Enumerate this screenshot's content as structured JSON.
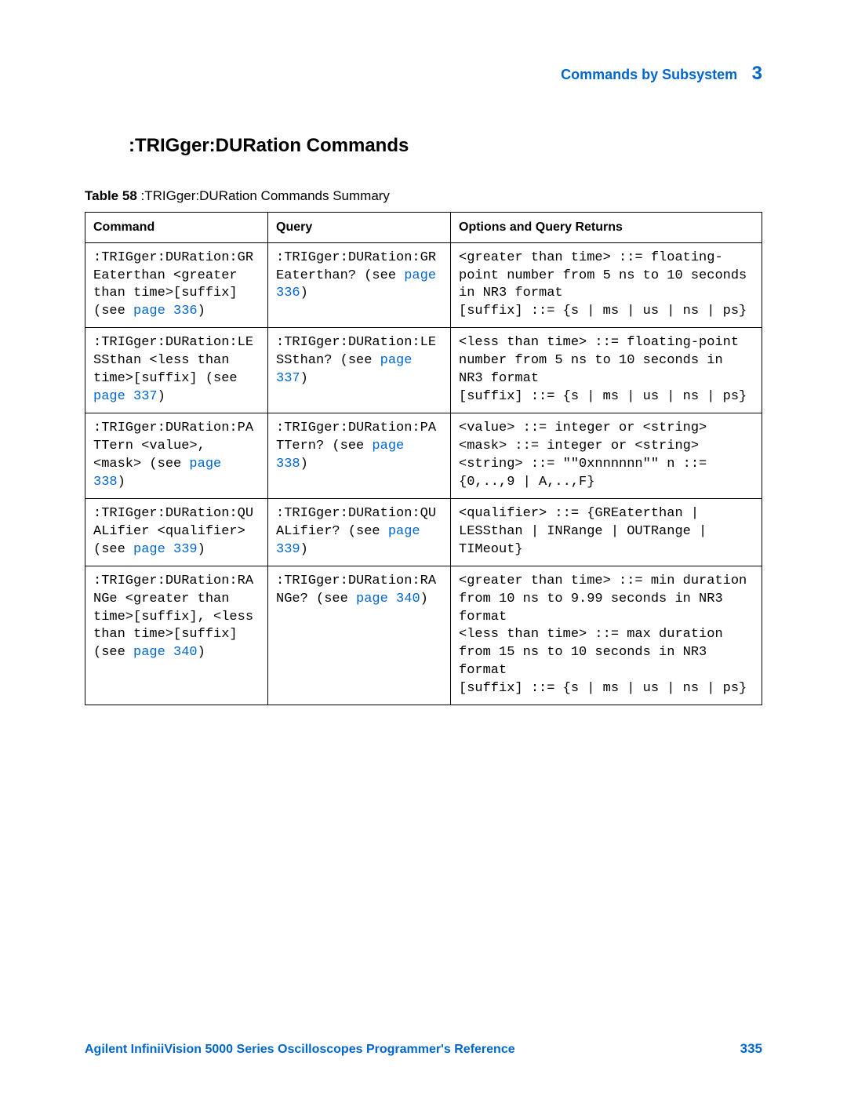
{
  "header": {
    "breadcrumb": "Commands by Subsystem",
    "chapter_num": "3"
  },
  "section": {
    "title": ":TRIGger:DURation Commands"
  },
  "table": {
    "caption_label": "Table 58",
    "caption_text": ":TRIGger:DURation Commands Summary",
    "headers": {
      "c1": "Command",
      "c2": "Query",
      "c3": "Options and Query Returns"
    },
    "rows": [
      {
        "cmd_pre": ":TRIGger:DURation:GREaterthan <greater than time>[suffix] (see ",
        "cmd_link": "page 336",
        "cmd_post": ")",
        "qry_pre": ":TRIGger:DURation:GREaterthan? (see ",
        "qry_link": "page 336",
        "qry_post": ")",
        "opt": "<greater than time> ::= floating-point number from 5 ns to 10 seconds in NR3 format\n[suffix] ::= {s | ms | us | ns | ps}"
      },
      {
        "cmd_pre": ":TRIGger:DURation:LESSthan <less than time>[suffix] (see ",
        "cmd_link": "page 337",
        "cmd_post": ")",
        "qry_pre": ":TRIGger:DURation:LESSthan? (see ",
        "qry_link": "page 337",
        "qry_post": ")",
        "opt": "<less than time> ::= floating-point number from 5 ns to 10 seconds in NR3 format\n[suffix] ::= {s | ms | us | ns | ps}"
      },
      {
        "cmd_pre": ":TRIGger:DURation:PATTern <value>, <mask> (see ",
        "cmd_link": "page 338",
        "cmd_post": ")",
        "qry_pre": ":TRIGger:DURation:PATTern? (see ",
        "qry_link": "page 338",
        "qry_post": ")",
        "opt": "<value> ::= integer or <string>\n<mask> ::= integer or <string>\n<string> ::= \"\"0xnnnnnn\"\" n ::= {0,..,9 | A,..,F}"
      },
      {
        "cmd_pre": ":TRIGger:DURation:QUALifier <qualifier> (see ",
        "cmd_link": "page 339",
        "cmd_post": ")",
        "qry_pre": ":TRIGger:DURation:QUALifier? (see ",
        "qry_link": "page 339",
        "qry_post": ")",
        "opt": "<qualifier> ::= {GREaterthan | LESSthan | INRange | OUTRange | TIMeout}"
      },
      {
        "cmd_pre": ":TRIGger:DURation:RANGe <greater than time>[suffix], <less than time>[suffix] (see ",
        "cmd_link": "page 340",
        "cmd_post": ")",
        "qry_pre": ":TRIGger:DURation:RANGe? (see ",
        "qry_link": "page 340",
        "qry_post": ")",
        "opt": "<greater than time> ::= min duration from 10 ns to 9.99 seconds in NR3 format\n<less than time> ::= max duration from 15 ns to 10 seconds in NR3 format\n[suffix] ::= {s | ms | us | ns | ps}"
      }
    ]
  },
  "footer": {
    "title": "Agilent InfiniiVision 5000 Series Oscilloscopes Programmer's Reference",
    "page": "335"
  },
  "colors": {
    "link": "#0066cc",
    "text": "#000000",
    "border": "#000000",
    "background": "#ffffff"
  }
}
